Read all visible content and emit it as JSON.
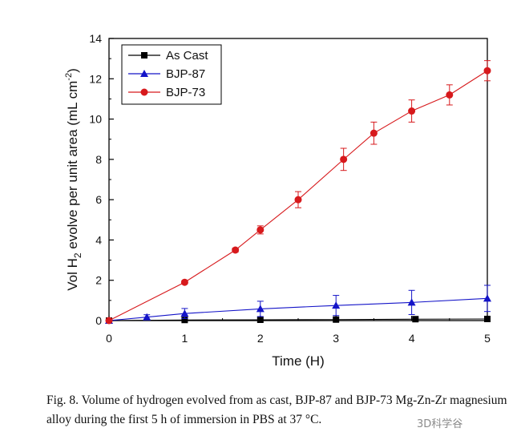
{
  "chart_data": {
    "type": "line",
    "title": "",
    "xlabel": "Time (H)",
    "ylabel_parts": [
      "Vol H",
      "2",
      " evolve per unit area (mL cm",
      "-2",
      ")"
    ],
    "xlim": [
      0,
      5
    ],
    "ylim": [
      0,
      14
    ],
    "x_ticks": [
      "0",
      "1",
      "2",
      "3",
      "4",
      "5"
    ],
    "y_ticks": [
      "0",
      "2",
      "4",
      "6",
      "8",
      "10",
      "12",
      "14"
    ],
    "grid": false,
    "legend_position": "top-left",
    "series": [
      {
        "name": "As Cast",
        "marker": "square",
        "color": "#000000",
        "points": [
          {
            "x": 0,
            "y": 0.0
          },
          {
            "x": 1,
            "y": 0.03
          },
          {
            "x": 2,
            "y": 0.04
          },
          {
            "x": 3,
            "y": 0.05
          },
          {
            "x": 4.05,
            "y": 0.07
          },
          {
            "x": 5,
            "y": 0.08
          }
        ],
        "errors": [
          0,
          0,
          0,
          0,
          0,
          0
        ]
      },
      {
        "name": "BJP-87",
        "marker": "triangle",
        "color": "#1414c8",
        "points": [
          {
            "x": 0,
            "y": 0.0
          },
          {
            "x": 0.5,
            "y": 0.17
          },
          {
            "x": 1,
            "y": 0.35
          },
          {
            "x": 2,
            "y": 0.58
          },
          {
            "x": 3,
            "y": 0.75
          },
          {
            "x": 4,
            "y": 0.9
          },
          {
            "x": 5,
            "y": 1.1
          }
        ],
        "errors": [
          0,
          0.12,
          0.25,
          0.38,
          0.5,
          0.6,
          0.65
        ]
      },
      {
        "name": "BJP-73",
        "marker": "circle",
        "color": "#d7191c",
        "points": [
          {
            "x": 0,
            "y": 0.0
          },
          {
            "x": 1,
            "y": 1.9
          },
          {
            "x": 1.67,
            "y": 3.5
          },
          {
            "x": 2,
            "y": 4.5
          },
          {
            "x": 2.5,
            "y": 6.0
          },
          {
            "x": 3.1,
            "y": 8.0
          },
          {
            "x": 3.5,
            "y": 9.3
          },
          {
            "x": 4,
            "y": 10.4
          },
          {
            "x": 4.5,
            "y": 11.2
          },
          {
            "x": 5,
            "y": 12.4
          }
        ],
        "errors": [
          0,
          0.08,
          0.1,
          0.2,
          0.4,
          0.55,
          0.55,
          0.55,
          0.5,
          0.5
        ]
      }
    ]
  },
  "caption": "Fig. 8. Volume of hydrogen evolved from as cast, BJP-87 and BJP-73 Mg-Zn-Zr magnesium alloy during the first 5 h of immersion in PBS at 37 °C.",
  "watermark": "3D科学谷"
}
